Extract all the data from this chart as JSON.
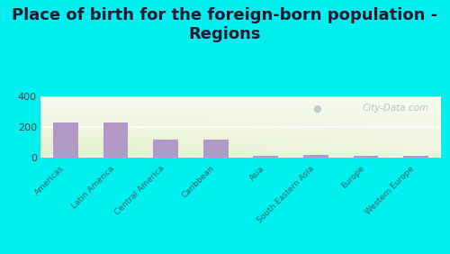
{
  "title": "Place of birth for the foreign-born population -\nRegions",
  "categories": [
    "Americas",
    "Latin America",
    "Central America",
    "Caribbean",
    "Asia",
    "South Eastern Asia",
    "Europe",
    "Western Europe"
  ],
  "values": [
    232,
    232,
    120,
    118,
    12,
    14,
    12,
    12
  ],
  "bar_color": "#b399c8",
  "outer_bg": "#00efef",
  "ylim": [
    0,
    400
  ],
  "yticks": [
    0,
    200,
    400
  ],
  "watermark": "City-Data.com",
  "title_fontsize": 13,
  "title_color": "#1a1a2e"
}
